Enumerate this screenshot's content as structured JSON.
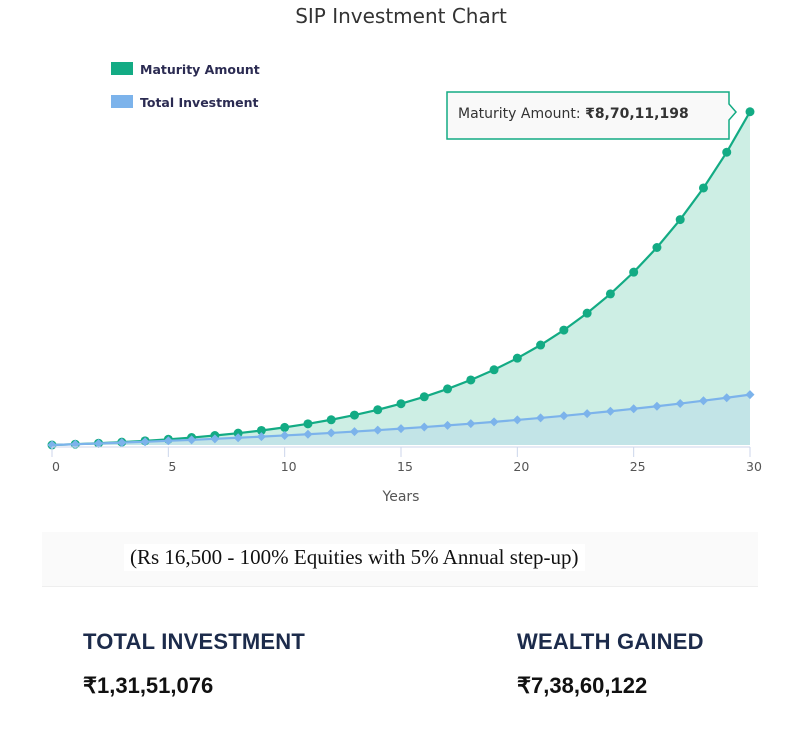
{
  "chart_data": {
    "type": "area",
    "title": "SIP Investment Chart",
    "xlabel": "Years",
    "ylabel": "",
    "xlim": [
      0,
      30
    ],
    "ylim": [
      0,
      100000000
    ],
    "x_ticks": [
      0,
      5,
      10,
      15,
      20,
      25,
      30
    ],
    "grid": false,
    "legend_placement": "top-left",
    "x": [
      0,
      1,
      2,
      3,
      4,
      5,
      6,
      7,
      8,
      9,
      10,
      11,
      12,
      13,
      14,
      15,
      16,
      17,
      18,
      19,
      20,
      21,
      22,
      23,
      24,
      25,
      26,
      27,
      28,
      29,
      30
    ],
    "series": [
      {
        "name": "Maturity Amount",
        "color": "#13ab84",
        "fill": "#cdeee4",
        "marker": "circle",
        "values": [
          0,
          211000,
          460000,
          752000,
          1092000,
          1487000,
          1946000,
          2476000,
          3087000,
          3791000,
          4600000,
          5528000,
          6590000,
          7806000,
          9194000,
          10779000,
          12585000,
          14642000,
          16984000,
          19645000,
          22670000,
          26106000,
          30006000,
          34429000,
          39445000,
          45129000,
          51567000,
          58857000,
          67108000,
          76446000,
          87011198
        ]
      },
      {
        "name": "Total Investment",
        "color": "#7cb3eb",
        "fill": "#bde0e8",
        "marker": "diamond",
        "values": [
          0,
          198000,
          405900,
          624195,
          853405,
          1094075,
          1346779,
          1612118,
          1890724,
          2183260,
          2490423,
          2812944,
          3151591,
          3507171,
          3880529,
          4272555,
          4684183,
          5116392,
          5570212,
          6046722,
          6547058,
          7072411,
          7624032,
          8203233,
          8811395,
          9449965,
          10120463,
          10824486,
          11563710,
          12339896,
          13151076
        ]
      }
    ],
    "tooltip": {
      "label": "Maturity Amount:",
      "value": "₹8,70,11,198",
      "x": 30
    }
  },
  "note": "(Rs 16,500 - 100% Equities with  5% Annual step-up)",
  "stats": {
    "total_investment_label": "TOTAL INVESTMENT",
    "total_investment_value": "₹1,31,51,076",
    "wealth_gained_label": "WEALTH GAINED",
    "wealth_gained_value": "₹7,38,60,122"
  }
}
